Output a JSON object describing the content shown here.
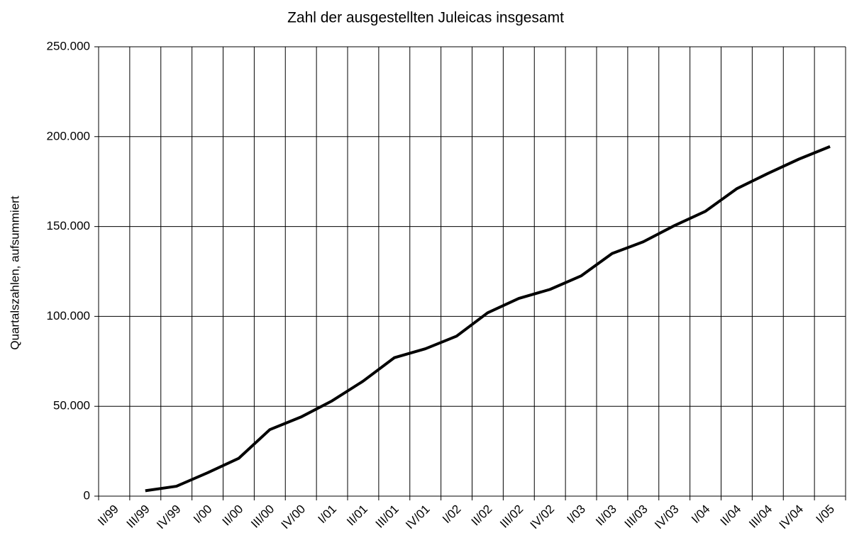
{
  "chart_data": {
    "type": "line",
    "title": "Zahl der ausgestellten Juleicas insgesamt",
    "y_label": "Quartalszahlen, aufsummiert",
    "categories": [
      "II/99",
      "III/99",
      "IV/99",
      "I/00",
      "II/00",
      "III/00",
      "IV/00",
      "I/01",
      "II/01",
      "III/01",
      "IV/01",
      "I/02",
      "II/02",
      "III/02",
      "IV/02",
      "I/03",
      "II/03",
      "III/03",
      "IV/03",
      "I/04",
      "II/04",
      "III/04",
      "IV/04",
      "I/05"
    ],
    "series": [
      {
        "name": "Juleicas",
        "color": "#000000",
        "values": [
          null,
          3000,
          5500,
          13000,
          21000,
          37000,
          44000,
          53000,
          64000,
          77000,
          82000,
          89000,
          102000,
          110000,
          115000,
          122500,
          135000,
          141500,
          150500,
          158500,
          171000,
          179500,
          187500,
          194500
        ]
      }
    ],
    "ylim": [
      0,
      250000
    ],
    "yticks": [
      0,
      {
        "value": 50000,
        "label": "50.000"
      },
      {
        "value": 100000,
        "label": "100.000"
      },
      {
        "value": 150000,
        "label": "150.000"
      },
      {
        "value": 200000,
        "label": "200.000"
      },
      {
        "value": 250000,
        "label": "250.000"
      }
    ],
    "grid": true
  }
}
